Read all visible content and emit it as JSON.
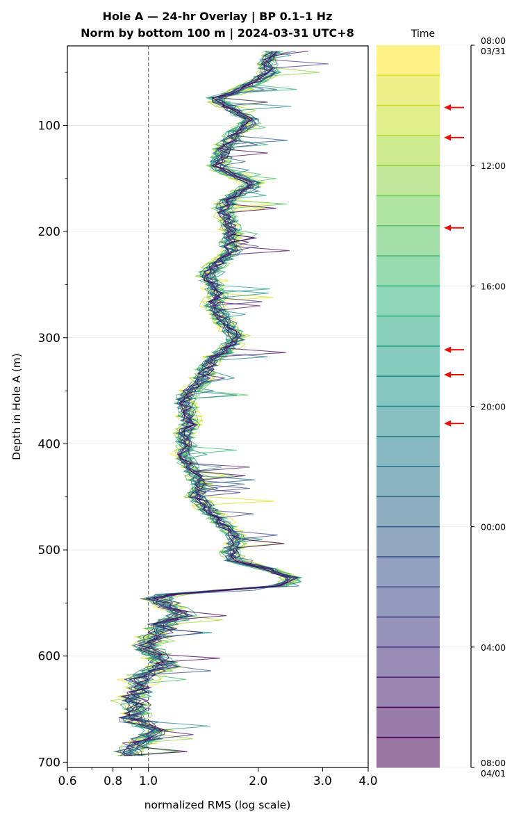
{
  "chart_data": {
    "type": "line",
    "title_line1": "Hole A — 24-hr Overlay  |  BP 0.1–1 Hz",
    "title_line2": "Norm by bottom 100 m  |  2024-03-31 UTC+8",
    "xlabel": "normalized RMS  (log scale)",
    "ylabel": "Depth in Hole A (m)",
    "x_scale": "log",
    "xlim": [
      0.6,
      4.0
    ],
    "ylim": [
      705,
      25
    ],
    "x_ticks": [
      {
        "value": 0.6,
        "label": "0.6"
      },
      {
        "value": 0.8,
        "label": "0.8"
      },
      {
        "value": 1.0,
        "label": "1.0"
      },
      {
        "value": 2.0,
        "label": "2.0"
      },
      {
        "value": 3.0,
        "label": "3.0"
      },
      {
        "value": 4.0,
        "label": "4.0"
      }
    ],
    "y_ticks": [
      {
        "value": 100,
        "label": "100"
      },
      {
        "value": 200,
        "label": "200"
      },
      {
        "value": 300,
        "label": "300"
      },
      {
        "value": 400,
        "label": "400"
      },
      {
        "value": 500,
        "label": "500"
      },
      {
        "value": 600,
        "label": "600"
      },
      {
        "value": 700,
        "label": "700"
      }
    ],
    "y_grid": true,
    "reference_line": {
      "x": 1.0,
      "style": "dashed"
    },
    "depth_profile": [
      [
        30,
        2.2
      ],
      [
        40,
        2.1
      ],
      [
        50,
        2.15
      ],
      [
        60,
        1.95
      ],
      [
        70,
        1.7
      ],
      [
        75,
        1.5
      ],
      [
        80,
        1.6
      ],
      [
        90,
        1.8
      ],
      [
        95,
        1.95
      ],
      [
        100,
        1.85
      ],
      [
        110,
        1.7
      ],
      [
        120,
        1.62
      ],
      [
        130,
        1.58
      ],
      [
        140,
        1.55
      ],
      [
        148,
        1.75
      ],
      [
        155,
        1.95
      ],
      [
        160,
        1.85
      ],
      [
        170,
        1.65
      ],
      [
        180,
        1.6
      ],
      [
        190,
        1.65
      ],
      [
        200,
        1.7
      ],
      [
        210,
        1.65
      ],
      [
        220,
        1.7
      ],
      [
        230,
        1.55
      ],
      [
        240,
        1.45
      ],
      [
        250,
        1.5
      ],
      [
        260,
        1.55
      ],
      [
        270,
        1.5
      ],
      [
        280,
        1.58
      ],
      [
        290,
        1.65
      ],
      [
        300,
        1.75
      ],
      [
        310,
        1.65
      ],
      [
        320,
        1.5
      ],
      [
        330,
        1.45
      ],
      [
        340,
        1.4
      ],
      [
        350,
        1.3
      ],
      [
        360,
        1.25
      ],
      [
        370,
        1.28
      ],
      [
        380,
        1.3
      ],
      [
        390,
        1.25
      ],
      [
        400,
        1.28
      ],
      [
        410,
        1.25
      ],
      [
        420,
        1.3
      ],
      [
        430,
        1.35
      ],
      [
        440,
        1.4
      ],
      [
        450,
        1.35
      ],
      [
        460,
        1.45
      ],
      [
        470,
        1.55
      ],
      [
        480,
        1.65
      ],
      [
        490,
        1.75
      ],
      [
        500,
        1.68
      ],
      [
        510,
        1.72
      ],
      [
        520,
        2.2
      ],
      [
        528,
        2.55
      ],
      [
        535,
        2.2
      ],
      [
        540,
        1.2
      ],
      [
        545,
        1.05
      ],
      [
        555,
        1.15
      ],
      [
        560,
        1.25
      ],
      [
        570,
        1.1
      ],
      [
        580,
        1.05
      ],
      [
        590,
        0.98
      ],
      [
        600,
        1.05
      ],
      [
        610,
        1.1
      ],
      [
        620,
        0.95
      ],
      [
        630,
        0.95
      ],
      [
        640,
        0.9
      ],
      [
        650,
        0.93
      ],
      [
        660,
        0.9
      ],
      [
        670,
        1.05
      ],
      [
        675,
        1.0
      ],
      [
        680,
        0.95
      ],
      [
        690,
        0.9
      ],
      [
        695,
        0.9
      ]
    ],
    "series_count": 24,
    "colorbar": {
      "label": "Time",
      "colormap": "viridis",
      "bands": 24,
      "ticks": [
        {
          "line1": "08:00",
          "line2": "03/31",
          "hours": 0
        },
        {
          "line1": "12:00",
          "line2": "",
          "hours": 4
        },
        {
          "line1": "16:00",
          "line2": "",
          "hours": 8
        },
        {
          "line1": "20:00",
          "line2": "",
          "hours": 12
        },
        {
          "line1": "00:00",
          "line2": "",
          "hours": 16
        },
        {
          "line1": "04:00",
          "line2": "",
          "hours": 20
        },
        {
          "line1": "08:00",
          "line2": "04/01",
          "hours": 24
        }
      ],
      "arrow_hours": [
        2.07,
        3.07,
        6.07,
        10.12,
        10.95,
        12.57
      ],
      "arrow_color": "#e8120c"
    }
  }
}
